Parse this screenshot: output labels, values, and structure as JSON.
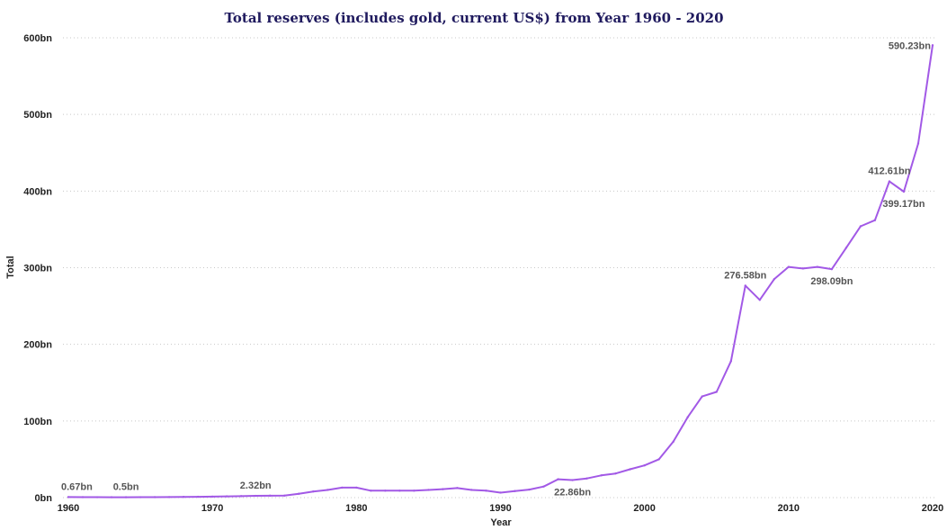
{
  "chart_data": {
    "type": "line",
    "title": "Total reserves (includes gold, current US$) from Year 1960 - 2020",
    "xlabel": "Year",
    "ylabel": "Total",
    "xlim": [
      1960,
      2020
    ],
    "ylim": [
      0,
      600
    ],
    "x_ticks": [
      1960,
      1970,
      1980,
      1990,
      2000,
      2010,
      2020
    ],
    "x_tick_labels": [
      "1960",
      "1970",
      "1980",
      "1990",
      "2000",
      "2010",
      "2020"
    ],
    "y_ticks": [
      0,
      100,
      200,
      300,
      400,
      500,
      600
    ],
    "y_tick_labels": [
      "0bn",
      "100bn",
      "200bn",
      "300bn",
      "400bn",
      "500bn",
      "600bn"
    ],
    "grid": true,
    "line_color": "#a259e6",
    "title_color": "#1f1a5e",
    "series": [
      {
        "x": [
          1960,
          1961,
          1962,
          1963,
          1964,
          1965,
          1966,
          1967,
          1968,
          1969,
          1970,
          1971,
          1972,
          1973,
          1974,
          1975,
          1976,
          1977,
          1978,
          1979,
          1980,
          1981,
          1982,
          1983,
          1984,
          1985,
          1986,
          1987,
          1988,
          1989,
          1990,
          1991,
          1992,
          1993,
          1994,
          1995,
          1996,
          1997,
          1998,
          1999,
          2000,
          2001,
          2002,
          2003,
          2004,
          2005,
          2006,
          2007,
          2008,
          2009,
          2010,
          2011,
          2012,
          2013,
          2014,
          2015,
          2016,
          2017,
          2018,
          2019,
          2020
        ],
        "values": [
          0.67,
          0.6,
          0.55,
          0.52,
          0.5,
          0.55,
          0.6,
          0.7,
          0.9,
          1.1,
          1.3,
          1.6,
          1.9,
          2.32,
          2.5,
          2.6,
          5,
          8,
          10,
          13,
          13,
          9,
          9,
          9,
          9,
          10,
          11,
          12.5,
          10,
          9,
          6.5,
          8.5,
          10.5,
          14.5,
          24,
          22.86,
          25,
          29,
          31.5,
          37,
          42,
          50,
          73,
          105,
          132,
          138,
          178,
          276.58,
          258,
          285,
          301,
          299,
          301,
          298.09,
          326,
          354,
          362,
          412.61,
          399.17,
          462,
          590.23
        ]
      }
    ],
    "annotations": [
      {
        "x": 1960,
        "y": 0.67,
        "text": "0.67bn",
        "position": "above"
      },
      {
        "x": 1964,
        "y": 0.5,
        "text": "0.5bn",
        "position": "above"
      },
      {
        "x": 1973,
        "y": 2.32,
        "text": "2.32bn",
        "position": "above"
      },
      {
        "x": 1995,
        "y": 22.86,
        "text": "22.86bn",
        "position": "below"
      },
      {
        "x": 2007,
        "y": 276.58,
        "text": "276.58bn",
        "position": "above"
      },
      {
        "x": 2013,
        "y": 298.09,
        "text": "298.09bn",
        "position": "below"
      },
      {
        "x": 2017,
        "y": 412.61,
        "text": "412.61bn",
        "position": "above"
      },
      {
        "x": 2018,
        "y": 399.17,
        "text": "399.17bn",
        "position": "below"
      },
      {
        "x": 2020,
        "y": 590.23,
        "text": "590.23bn",
        "position": "left"
      }
    ]
  }
}
